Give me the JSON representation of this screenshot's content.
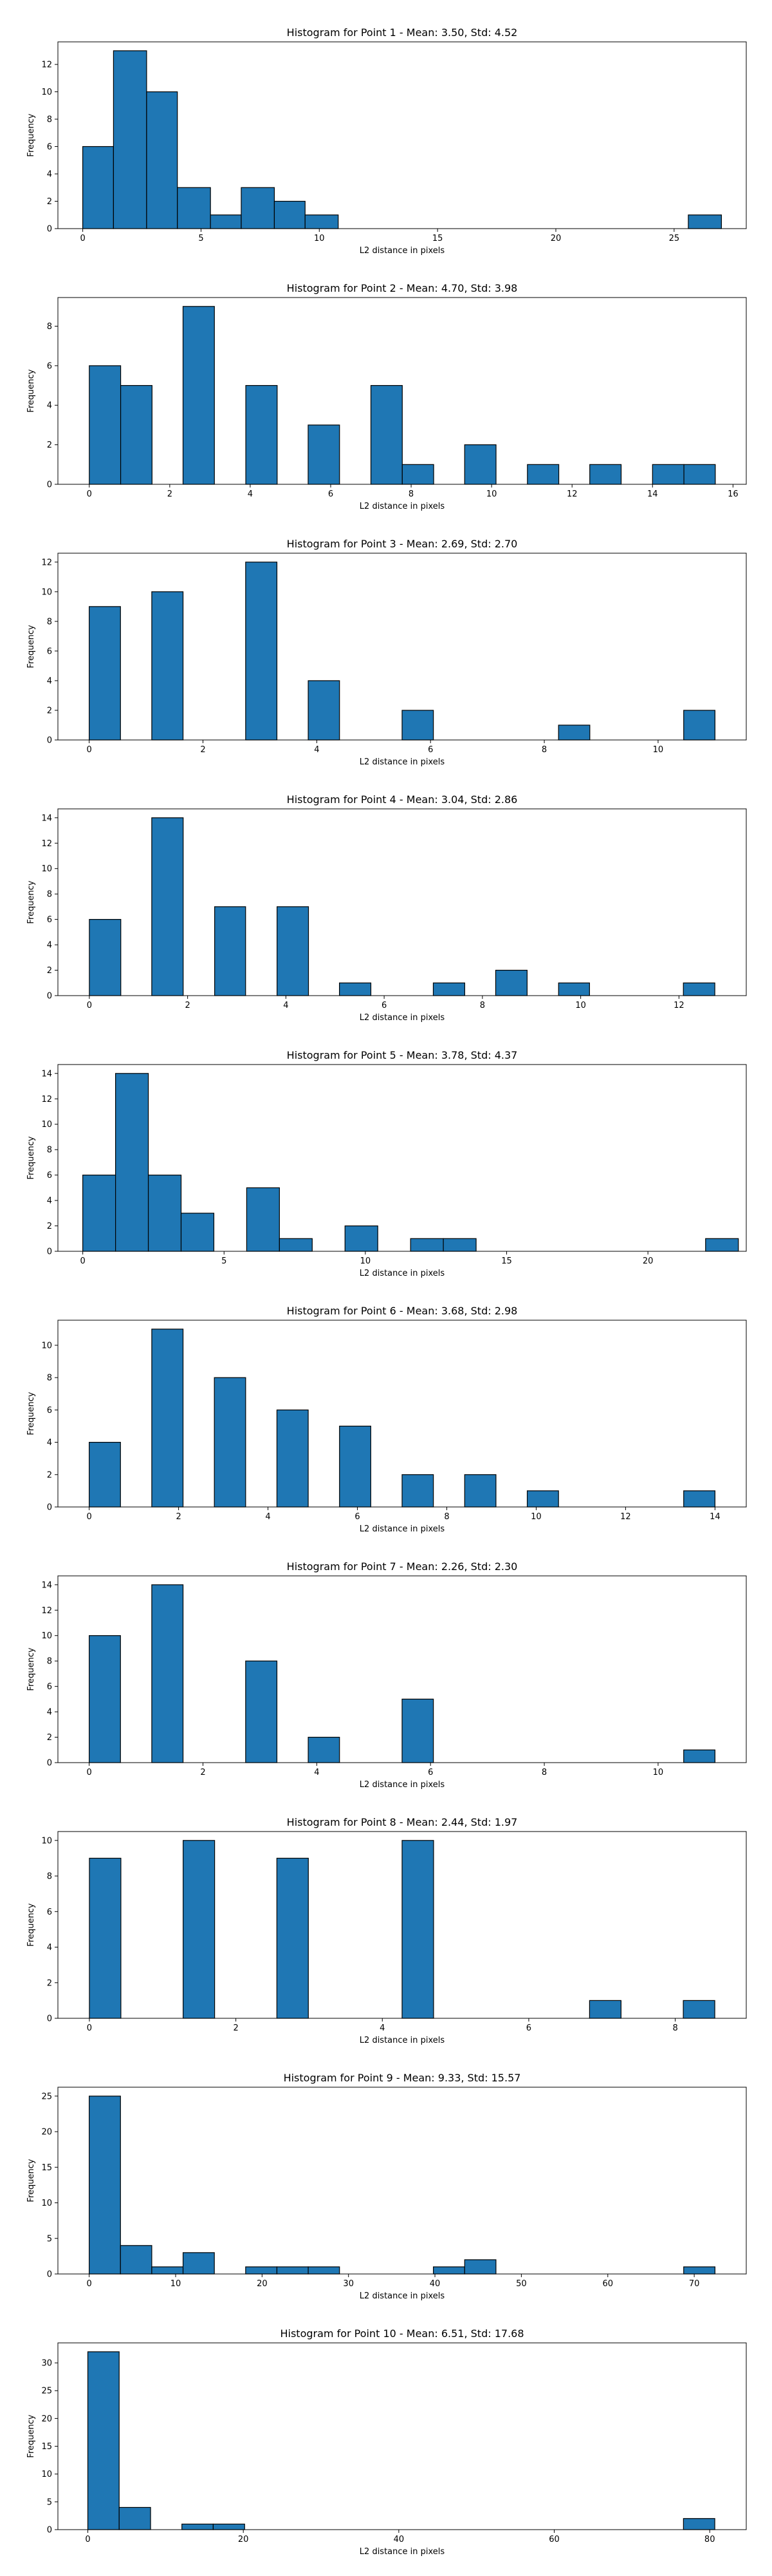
{
  "colors": {
    "bar_fill": "#1f77b4",
    "bar_edge": "#000000",
    "axis": "#000000"
  },
  "chart_data": [
    {
      "type": "bar",
      "title": "Histogram for Point 1 - Mean: 3.50, Std: 4.52",
      "xlabel": "L2 distance in pixels",
      "ylabel": "Frequency",
      "xlim": [
        -1.05,
        28.05
      ],
      "ylim": [
        0,
        13.65
      ],
      "xticks": [
        0,
        5,
        10,
        15,
        20,
        25
      ],
      "yticks": [
        0,
        2,
        4,
        6,
        8,
        10,
        12
      ],
      "bars": [
        {
          "x0": 0.0,
          "x1": 1.3,
          "y": 6
        },
        {
          "x0": 1.3,
          "x1": 2.7,
          "y": 13
        },
        {
          "x0": 2.7,
          "x1": 4.0,
          "y": 10
        },
        {
          "x0": 4.0,
          "x1": 5.4,
          "y": 3
        },
        {
          "x0": 5.4,
          "x1": 6.7,
          "y": 1
        },
        {
          "x0": 6.7,
          "x1": 8.1,
          "y": 3
        },
        {
          "x0": 8.1,
          "x1": 9.4,
          "y": 2
        },
        {
          "x0": 9.4,
          "x1": 10.8,
          "y": 1
        },
        {
          "x0": 25.6,
          "x1": 27.0,
          "y": 1
        }
      ]
    },
    {
      "type": "bar",
      "title": "Histogram for Point 2 - Mean: 4.70, Std: 3.98",
      "xlabel": "L2 distance in pixels",
      "ylabel": "Frequency",
      "xlim": [
        -0.78,
        16.33
      ],
      "ylim": [
        0,
        9.45
      ],
      "xticks": [
        0,
        2,
        4,
        6,
        8,
        10,
        12,
        14,
        16
      ],
      "yticks": [
        0,
        2,
        4,
        6,
        8
      ],
      "bars": [
        {
          "x0": 0.0,
          "x1": 0.78,
          "y": 6
        },
        {
          "x0": 0.78,
          "x1": 1.56,
          "y": 5
        },
        {
          "x0": 2.33,
          "x1": 3.11,
          "y": 9
        },
        {
          "x0": 3.89,
          "x1": 4.67,
          "y": 5
        },
        {
          "x0": 5.44,
          "x1": 6.22,
          "y": 3
        },
        {
          "x0": 7.0,
          "x1": 7.78,
          "y": 5
        },
        {
          "x0": 7.78,
          "x1": 8.56,
          "y": 1
        },
        {
          "x0": 9.33,
          "x1": 10.11,
          "y": 2
        },
        {
          "x0": 10.89,
          "x1": 11.67,
          "y": 1
        },
        {
          "x0": 12.44,
          "x1": 13.22,
          "y": 1
        },
        {
          "x0": 14.0,
          "x1": 14.78,
          "y": 1
        },
        {
          "x0": 14.78,
          "x1": 15.56,
          "y": 1
        }
      ]
    },
    {
      "type": "bar",
      "title": "Histogram for Point 3 - Mean: 2.69, Std: 2.70",
      "xlabel": "L2 distance in pixels",
      "ylabel": "Frequency",
      "xlim": [
        -0.55,
        11.55
      ],
      "ylim": [
        0,
        12.6
      ],
      "xticks": [
        0,
        2,
        4,
        6,
        8,
        10
      ],
      "yticks": [
        0,
        2,
        4,
        6,
        8,
        10,
        12
      ],
      "bars": [
        {
          "x0": 0.0,
          "x1": 0.55,
          "y": 9
        },
        {
          "x0": 1.1,
          "x1": 1.65,
          "y": 10
        },
        {
          "x0": 2.2,
          "x1": 2.75,
          "y": 0
        },
        {
          "x0": 2.75,
          "x1": 3.3,
          "y": 12
        },
        {
          "x0": 3.85,
          "x1": 4.4,
          "y": 4
        },
        {
          "x0": 4.95,
          "x1": 5.5,
          "y": 0
        },
        {
          "x0": 5.5,
          "x1": 6.05,
          "y": 2
        },
        {
          "x0": 8.25,
          "x1": 8.8,
          "y": 1
        },
        {
          "x0": 10.45,
          "x1": 11.0,
          "y": 2
        }
      ]
    },
    {
      "type": "bar",
      "title": "Histogram for Point 4 - Mean: 3.04, Std: 2.86",
      "xlabel": "L2 distance in pixels",
      "ylabel": "Frequency",
      "xlim": [
        -0.64,
        13.37
      ],
      "ylim": [
        0,
        14.7
      ],
      "xticks": [
        0,
        2,
        4,
        6,
        8,
        10,
        12
      ],
      "yticks": [
        0,
        2,
        4,
        6,
        8,
        10,
        12,
        14
      ],
      "bars": [
        {
          "x0": 0.0,
          "x1": 0.64,
          "y": 6
        },
        {
          "x0": 1.27,
          "x1": 1.91,
          "y": 14
        },
        {
          "x0": 2.55,
          "x1": 3.18,
          "y": 7
        },
        {
          "x0": 3.82,
          "x1": 4.46,
          "y": 7
        },
        {
          "x0": 5.09,
          "x1": 5.73,
          "y": 1
        },
        {
          "x0": 7.0,
          "x1": 7.64,
          "y": 1
        },
        {
          "x0": 8.27,
          "x1": 8.91,
          "y": 2
        },
        {
          "x0": 9.55,
          "x1": 10.18,
          "y": 1
        },
        {
          "x0": 12.09,
          "x1": 12.73,
          "y": 1
        }
      ]
    },
    {
      "type": "bar",
      "title": "Histogram for Point 5 - Mean: 3.78, Std: 4.37",
      "xlabel": "L2 distance in pixels",
      "ylabel": "Frequency",
      "xlim": [
        -0.88,
        23.48
      ],
      "ylim": [
        0,
        14.7
      ],
      "xticks": [
        0,
        5,
        10,
        15,
        20
      ],
      "yticks": [
        0,
        2,
        4,
        6,
        8,
        10,
        12,
        14
      ],
      "bars": [
        {
          "x0": 0.0,
          "x1": 1.16,
          "y": 6
        },
        {
          "x0": 1.16,
          "x1": 2.32,
          "y": 14
        },
        {
          "x0": 2.32,
          "x1": 3.48,
          "y": 6
        },
        {
          "x0": 3.48,
          "x1": 4.64,
          "y": 3
        },
        {
          "x0": 5.8,
          "x1": 6.96,
          "y": 5
        },
        {
          "x0": 6.96,
          "x1": 8.12,
          "y": 1
        },
        {
          "x0": 9.28,
          "x1": 10.44,
          "y": 2
        },
        {
          "x0": 11.6,
          "x1": 12.76,
          "y": 1
        },
        {
          "x0": 12.76,
          "x1": 13.92,
          "y": 1
        },
        {
          "x0": 22.04,
          "x1": 23.2,
          "y": 1
        }
      ]
    },
    {
      "type": "bar",
      "title": "Histogram for Point 6 - Mean: 3.68, Std: 2.98",
      "xlabel": "L2 distance in pixels",
      "ylabel": "Frequency",
      "xlim": [
        -0.7,
        14.7
      ],
      "ylim": [
        0,
        11.55
      ],
      "xticks": [
        0,
        2,
        4,
        6,
        8,
        10,
        12,
        14
      ],
      "yticks": [
        0,
        2,
        4,
        6,
        8,
        10
      ],
      "bars": [
        {
          "x0": 0.0,
          "x1": 0.7,
          "y": 4
        },
        {
          "x0": 1.4,
          "x1": 2.1,
          "y": 11
        },
        {
          "x0": 2.8,
          "x1": 3.5,
          "y": 8
        },
        {
          "x0": 4.2,
          "x1": 4.9,
          "y": 6
        },
        {
          "x0": 5.6,
          "x1": 6.3,
          "y": 5
        },
        {
          "x0": 7.0,
          "x1": 7.7,
          "y": 2
        },
        {
          "x0": 8.4,
          "x1": 9.1,
          "y": 2
        },
        {
          "x0": 9.8,
          "x1": 10.5,
          "y": 1
        },
        {
          "x0": 13.3,
          "x1": 14.0,
          "y": 1
        }
      ]
    },
    {
      "type": "bar",
      "title": "Histogram for Point 7 - Mean: 2.26, Std: 2.30",
      "xlabel": "L2 distance in pixels",
      "ylabel": "Frequency",
      "xlim": [
        -0.55,
        11.55
      ],
      "ylim": [
        0,
        14.7
      ],
      "xticks": [
        0,
        2,
        4,
        6,
        8,
        10
      ],
      "yticks": [
        0,
        2,
        4,
        6,
        8,
        10,
        12,
        14
      ],
      "bars": [
        {
          "x0": 0.0,
          "x1": 0.55,
          "y": 10
        },
        {
          "x0": 1.1,
          "x1": 1.65,
          "y": 14
        },
        {
          "x0": 2.75,
          "x1": 3.3,
          "y": 8
        },
        {
          "x0": 3.85,
          "x1": 4.4,
          "y": 2
        },
        {
          "x0": 5.5,
          "x1": 6.05,
          "y": 5
        },
        {
          "x0": 10.45,
          "x1": 11.0,
          "y": 1
        }
      ]
    },
    {
      "type": "bar",
      "title": "Histogram for Point 8 - Mean: 2.44, Std: 1.97",
      "xlabel": "L2 distance in pixels",
      "ylabel": "Frequency",
      "xlim": [
        -0.43,
        8.97
      ],
      "ylim": [
        0,
        10.5
      ],
      "xticks": [
        0,
        2,
        4,
        6,
        8
      ],
      "yticks": [
        0,
        2,
        4,
        6,
        8,
        10
      ],
      "bars": [
        {
          "x0": 0.0,
          "x1": 0.43,
          "y": 9
        },
        {
          "x0": 1.28,
          "x1": 1.71,
          "y": 10
        },
        {
          "x0": 2.56,
          "x1": 2.99,
          "y": 9
        },
        {
          "x0": 4.27,
          "x1": 4.7,
          "y": 10
        },
        {
          "x0": 6.83,
          "x1": 7.26,
          "y": 1
        },
        {
          "x0": 8.11,
          "x1": 8.54,
          "y": 1
        }
      ]
    },
    {
      "type": "bar",
      "title": "Histogram for Point 9 - Mean: 9.33, Std: 15.57",
      "xlabel": "L2 distance in pixels",
      "ylabel": "Frequency",
      "xlim": [
        -3.62,
        76.02
      ],
      "ylim": [
        0,
        26.25
      ],
      "xticks": [
        0,
        10,
        20,
        30,
        40,
        50,
        60,
        70
      ],
      "yticks": [
        0,
        5,
        10,
        15,
        20,
        25
      ],
      "bars": [
        {
          "x0": 0.0,
          "x1": 3.62,
          "y": 25
        },
        {
          "x0": 3.62,
          "x1": 7.24,
          "y": 4
        },
        {
          "x0": 7.24,
          "x1": 10.86,
          "y": 1
        },
        {
          "x0": 10.86,
          "x1": 14.48,
          "y": 3
        },
        {
          "x0": 18.1,
          "x1": 21.72,
          "y": 1
        },
        {
          "x0": 21.72,
          "x1": 25.34,
          "y": 1
        },
        {
          "x0": 25.34,
          "x1": 28.96,
          "y": 1
        },
        {
          "x0": 39.82,
          "x1": 43.44,
          "y": 1
        },
        {
          "x0": 43.44,
          "x1": 47.06,
          "y": 2
        },
        {
          "x0": 68.78,
          "x1": 72.4,
          "y": 1
        }
      ]
    },
    {
      "type": "bar",
      "title": "Histogram for Point 10 - Mean: 6.51, Std: 17.68",
      "xlabel": "L2 distance in pixels",
      "ylabel": "Frequency",
      "xlim": [
        -3.85,
        84.7
      ],
      "ylim": [
        0,
        33.6
      ],
      "xticks": [
        0,
        20,
        40,
        60,
        80
      ],
      "yticks": [
        0,
        5,
        10,
        15,
        20,
        25,
        30
      ],
      "bars": [
        {
          "x0": 0.0,
          "x1": 4.03,
          "y": 32
        },
        {
          "x0": 4.03,
          "x1": 8.07,
          "y": 4
        },
        {
          "x0": 12.1,
          "x1": 16.13,
          "y": 1
        },
        {
          "x0": 16.13,
          "x1": 20.17,
          "y": 1
        },
        {
          "x0": 76.62,
          "x1": 80.65,
          "y": 2
        }
      ]
    }
  ]
}
